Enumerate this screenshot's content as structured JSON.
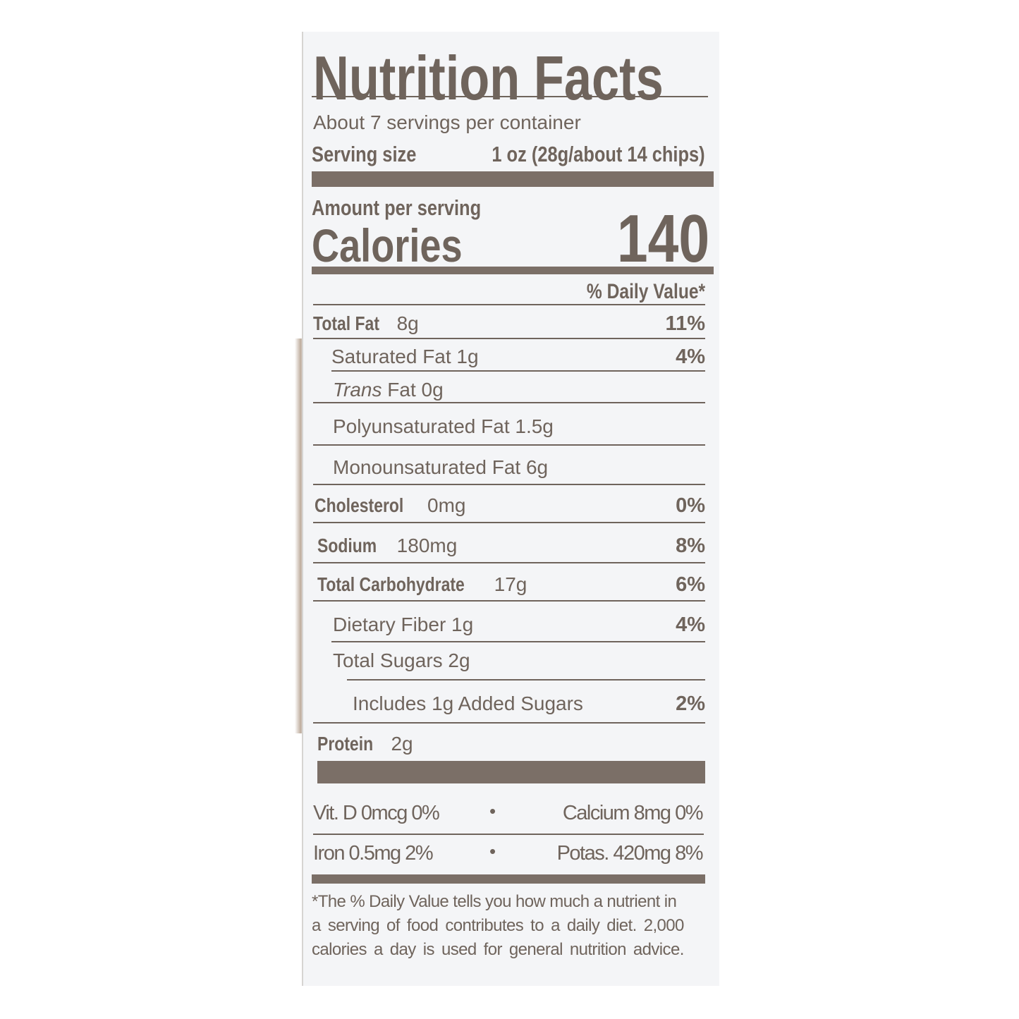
{
  "label": {
    "title": "Nutrition Facts",
    "servings_per_container": "About 7 servings per container",
    "serving_size_label": "Serving size",
    "serving_size_value": "1 oz (28g/about 14 chips)",
    "amount_per_serving": "Amount per serving",
    "calories_label": "Calories",
    "calories_value": "140",
    "daily_value_header": "% Daily Value*",
    "nutrients": [
      {
        "name": "Total Fat",
        "amount": "8g",
        "dv": "11%"
      },
      {
        "name": "Saturated Fat 1g",
        "dv": "4%"
      },
      {
        "name_italic": "Trans",
        "name": "Fat 0g"
      },
      {
        "name": "Polyunsaturated Fat 1.5g"
      },
      {
        "name": "Monounsaturated Fat 6g"
      },
      {
        "name": "Cholesterol",
        "amount": "0mg",
        "dv": "0%"
      },
      {
        "name": "Sodium",
        "amount": "180mg",
        "dv": "8%"
      },
      {
        "name": "Total Carbohydrate",
        "amount": "17g",
        "dv": "6%"
      },
      {
        "name": "Dietary Fiber 1g",
        "dv": "4%"
      },
      {
        "name": "Total Sugars 2g"
      },
      {
        "name": "Includes 1g Added Sugars",
        "dv": "2%"
      },
      {
        "name": "Protein",
        "amount": "2g"
      }
    ],
    "vitamins": [
      {
        "left": "Vit. D 0mcg 0%",
        "right": "Calcium 8mg 0%"
      },
      {
        "left": "Iron 0.5mg 2%",
        "right": "Potas. 420mg 8%"
      }
    ],
    "separator": "•",
    "footnote": [
      "*The % Daily Value tells you how much a nutrient in",
      "a serving of food contributes to a daily diet. 2,000",
      "calories a day is used for general nutrition advice."
    ],
    "colors": {
      "ink": "#6f645c",
      "bar": "#7b6f67",
      "background": "#f4f5f7"
    }
  }
}
